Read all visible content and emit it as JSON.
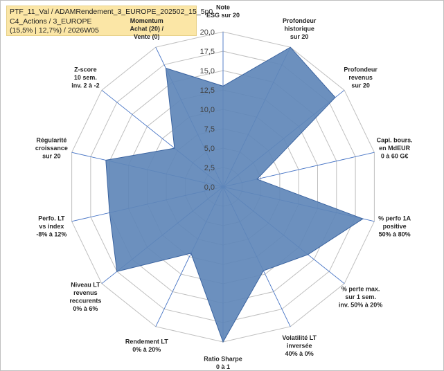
{
  "title_lines": [
    "PTF_11_Val / ADAMRendement_3_EUROPE_202502_15_5p0",
    "C4_Actions / 3_EUROPE",
    "(15,5% | 12,7%) / 2026W05"
  ],
  "colors": {
    "fill": "#5f87b9",
    "stroke": "#3a63a0",
    "grid": "#bfbfbf",
    "spoke": "#4472c4",
    "highlight": "#c9a24a"
  },
  "chart_data": {
    "type": "radar",
    "rmin": 0,
    "rmax": 20,
    "ticks": [
      "0,0",
      "2,5",
      "5,0",
      "7,5",
      "10,0",
      "12,5",
      "15,0",
      "17,5",
      "20,0"
    ],
    "axes": [
      {
        "lines": [
          "Note",
          "ESG sur 20"
        ],
        "value": 13
      },
      {
        "lines": [
          "Profondeur",
          "historique",
          "sur 20"
        ],
        "value": 20
      },
      {
        "lines": [
          "Profondeur",
          "revenus",
          "sur 20"
        ],
        "value": 18.5
      },
      {
        "lines": [
          "Capi. bours.",
          "en MdEUR",
          "0 à 60 G€"
        ],
        "value": 4.5
      },
      {
        "lines": [
          "% perfo 1A",
          "positive",
          "50% à 80%"
        ],
        "value": 18.5
      },
      {
        "lines": [
          "% perte max.",
          "sur 1 sem.",
          "inv. 50% à 20%"
        ],
        "value": 14
      },
      {
        "lines": [
          "Volatilité LT",
          "inversée",
          "40% à 0%"
        ],
        "value": 12
      },
      {
        "lines": [
          "Ratio Sharpe",
          "0 à 1"
        ],
        "value": 20
      },
      {
        "lines": [
          "Rendement LT",
          "0% à 20%"
        ],
        "value": 9.5
      },
      {
        "lines": [
          "Niveau LT",
          "revenus",
          "reccurents",
          "0% à 6%"
        ],
        "value": 17.5
      },
      {
        "lines": [
          "Perfo. LT",
          "vs index",
          "-8% à 12%"
        ],
        "value": 15
      },
      {
        "lines": [
          "Régularité",
          "croissance",
          "sur 20"
        ],
        "value": 15.5
      },
      {
        "lines": [
          "Z-score",
          "10 sem.",
          "inv. 2 à -2"
        ],
        "value": 8
      },
      {
        "lines": [
          "Momentum",
          "Achat (20) /",
          "Vente (0)"
        ],
        "value": 17,
        "highlight_first_line": true
      }
    ]
  }
}
